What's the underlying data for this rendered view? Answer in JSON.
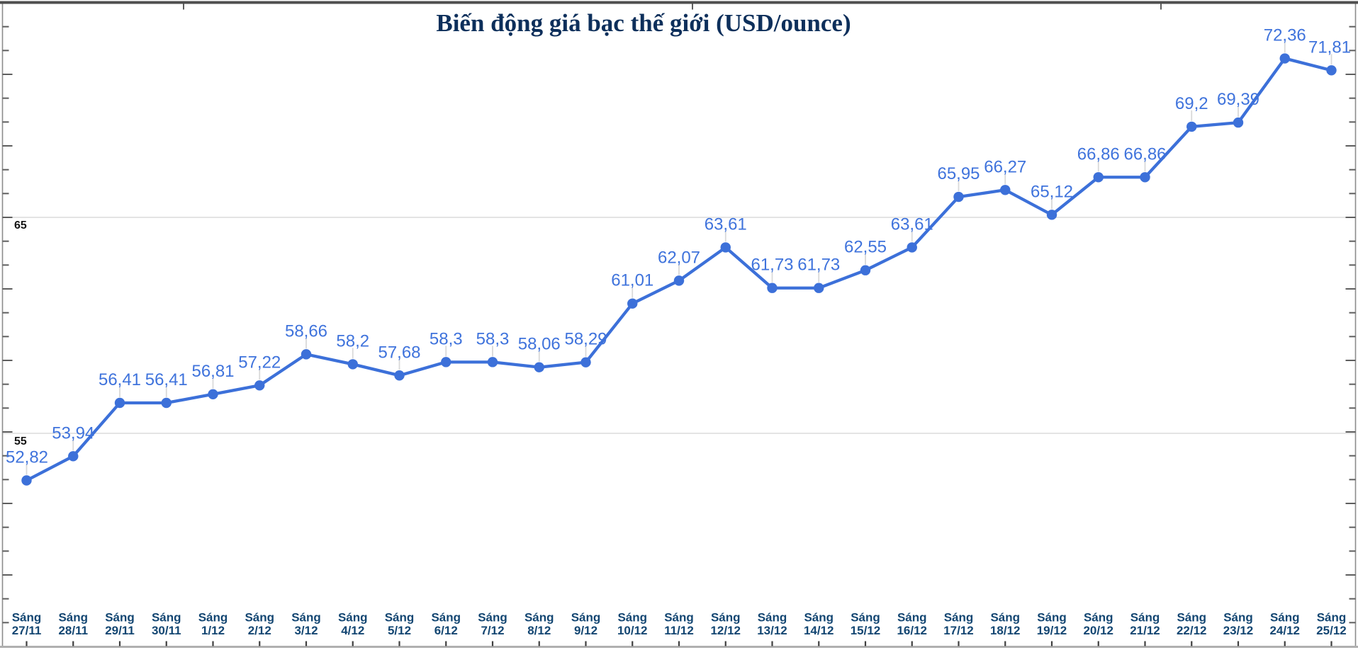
{
  "chart_data": {
    "type": "line",
    "title": "Biến động giá bạc thế giới (USD/ounce)",
    "x_tick_prefix": "Sáng",
    "categories": [
      "27/11",
      "28/11",
      "29/11",
      "30/11",
      "1/12",
      "2/12",
      "3/12",
      "4/12",
      "5/12",
      "6/12",
      "7/12",
      "8/12",
      "9/12",
      "10/12",
      "11/12",
      "12/12",
      "13/12",
      "14/12",
      "15/12",
      "16/12",
      "17/12",
      "18/12",
      "19/12",
      "20/12",
      "21/12",
      "22/12",
      "23/12",
      "24/12",
      "25/12"
    ],
    "values": [
      52.82,
      53.94,
      56.41,
      56.41,
      56.81,
      57.22,
      58.66,
      58.2,
      57.68,
      58.3,
      58.3,
      58.06,
      58.29,
      61.01,
      62.07,
      63.61,
      61.73,
      61.73,
      62.55,
      63.61,
      65.95,
      66.27,
      65.12,
      66.86,
      66.86,
      69.2,
      69.39,
      72.36,
      71.81
    ],
    "point_labels": [
      "52,82",
      "53,94",
      "56,41",
      "56,41",
      "56,81",
      "57,22",
      "58,66",
      "58,2",
      "57,68",
      "58,3",
      "58,3",
      "58,06",
      "58,29",
      "61,01",
      "62,07",
      "63,61",
      "61,73",
      "61,73",
      "62,55",
      "63,61",
      "65,95",
      "66,27",
      "65,12",
      "66,86",
      "66,86",
      "69,2",
      "69,39",
      "72,36",
      "71,81"
    ],
    "decimal_separator": ",",
    "ylim": [
      45,
      75
    ],
    "y_gridlines": [
      55,
      65
    ],
    "y_axis_labels": [
      "55",
      "65"
    ],
    "xlabel": "",
    "ylabel": "",
    "legend": "none",
    "grid": "horizontal-only",
    "colors": {
      "series": "#3c70d9",
      "point_label": "#3f73dc",
      "title": "#0d2f5b",
      "x_label": "#134672",
      "gridline": "#e4e4e4",
      "leader": "#d9d9d9",
      "tick": "#5e5e5e",
      "border_side": "#8c8c8c",
      "border_top": "#4f4f4f",
      "border_bottom": "#b0b0b0"
    }
  }
}
